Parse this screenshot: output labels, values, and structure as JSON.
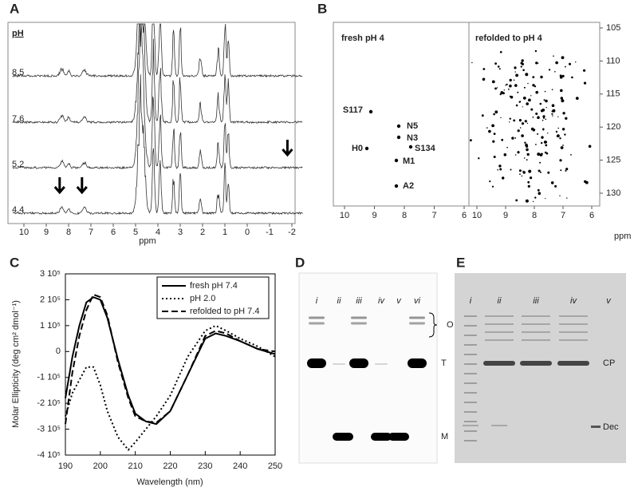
{
  "panel_a": {
    "label": "A",
    "axis_title": "pH",
    "traces": [
      "8.5",
      "7.6",
      "5.2",
      "4.4"
    ],
    "xticks": [
      10,
      9,
      8,
      7,
      6,
      5,
      4,
      3,
      2,
      1,
      0,
      -1,
      -2
    ],
    "x_label": "ppm"
  },
  "panel_b": {
    "label": "B",
    "left_title": "fresh pH 4",
    "right_title": "refolded to pH 4",
    "peaks": [
      "S117",
      "N5",
      "N3",
      "H0",
      "S134",
      "M1",
      "A2"
    ],
    "xticks": [
      10,
      9,
      8,
      7,
      6
    ],
    "yticks": [
      105,
      110,
      115,
      120,
      125,
      130
    ],
    "y_label": "ppm"
  },
  "chart_data": {
    "type": "line",
    "label": "C",
    "x_label": "Wavelength (nm)",
    "y_label": "Molar Ellipticity (deg cm² dmol⁻¹)",
    "x": [
      190,
      192,
      194,
      196,
      198,
      200,
      202,
      205,
      208,
      210,
      213,
      216,
      220,
      225,
      230,
      233,
      236,
      240,
      245,
      250
    ],
    "series": [
      {
        "name": "fresh pH 7.4",
        "color": "#000000",
        "line_style": "solid",
        "values": [
          -180000,
          -20000,
          100000,
          190000,
          210000,
          200000,
          130000,
          -30000,
          -170000,
          -240000,
          -270000,
          -280000,
          -230000,
          -90000,
          50000,
          70000,
          60000,
          40000,
          10000,
          -10000
        ]
      },
      {
        "name": "pH 2.0",
        "color": "#000000",
        "line_style": "dotted",
        "values": [
          -250000,
          -160000,
          -110000,
          -60000,
          -60000,
          -130000,
          -230000,
          -330000,
          -380000,
          -350000,
          -300000,
          -250000,
          -170000,
          -20000,
          80000,
          100000,
          80000,
          50000,
          20000,
          -20000
        ]
      },
      {
        "name": "refolded to pH 7.4",
        "color": "#000000",
        "line_style": "dashed",
        "values": [
          -280000,
          -80000,
          60000,
          160000,
          220000,
          210000,
          140000,
          -40000,
          -180000,
          -250000,
          -270000,
          -275000,
          -230000,
          -90000,
          60000,
          80000,
          70000,
          40000,
          10000,
          0
        ]
      }
    ],
    "xlim": [
      190,
      250
    ],
    "xticks": [
      190,
      200,
      210,
      220,
      230,
      240,
      250
    ],
    "ylim": [
      -400000,
      300000
    ],
    "yticks": [
      {
        "value": -400000,
        "label": "-4 10⁵"
      },
      {
        "value": -300000,
        "label": "-3 10⁵"
      },
      {
        "value": -200000,
        "label": "-2 10⁵"
      },
      {
        "value": -100000,
        "label": "-1 10⁵"
      },
      0,
      {
        "value": 100000,
        "label": "1 10⁵"
      },
      {
        "value": 200000,
        "label": "2 10⁵"
      },
      {
        "value": 300000,
        "label": "3 10⁵"
      }
    ]
  },
  "panel_d": {
    "label": "D",
    "lanes": [
      "i",
      "ii",
      "iii",
      "iv",
      "v",
      "vi"
    ],
    "bands": [
      "O",
      "T",
      "M"
    ]
  },
  "panel_e": {
    "label": "E",
    "lanes": [
      "i",
      "ii",
      "iii",
      "iv",
      "v"
    ],
    "bands": [
      "CP",
      "Dec"
    ]
  }
}
